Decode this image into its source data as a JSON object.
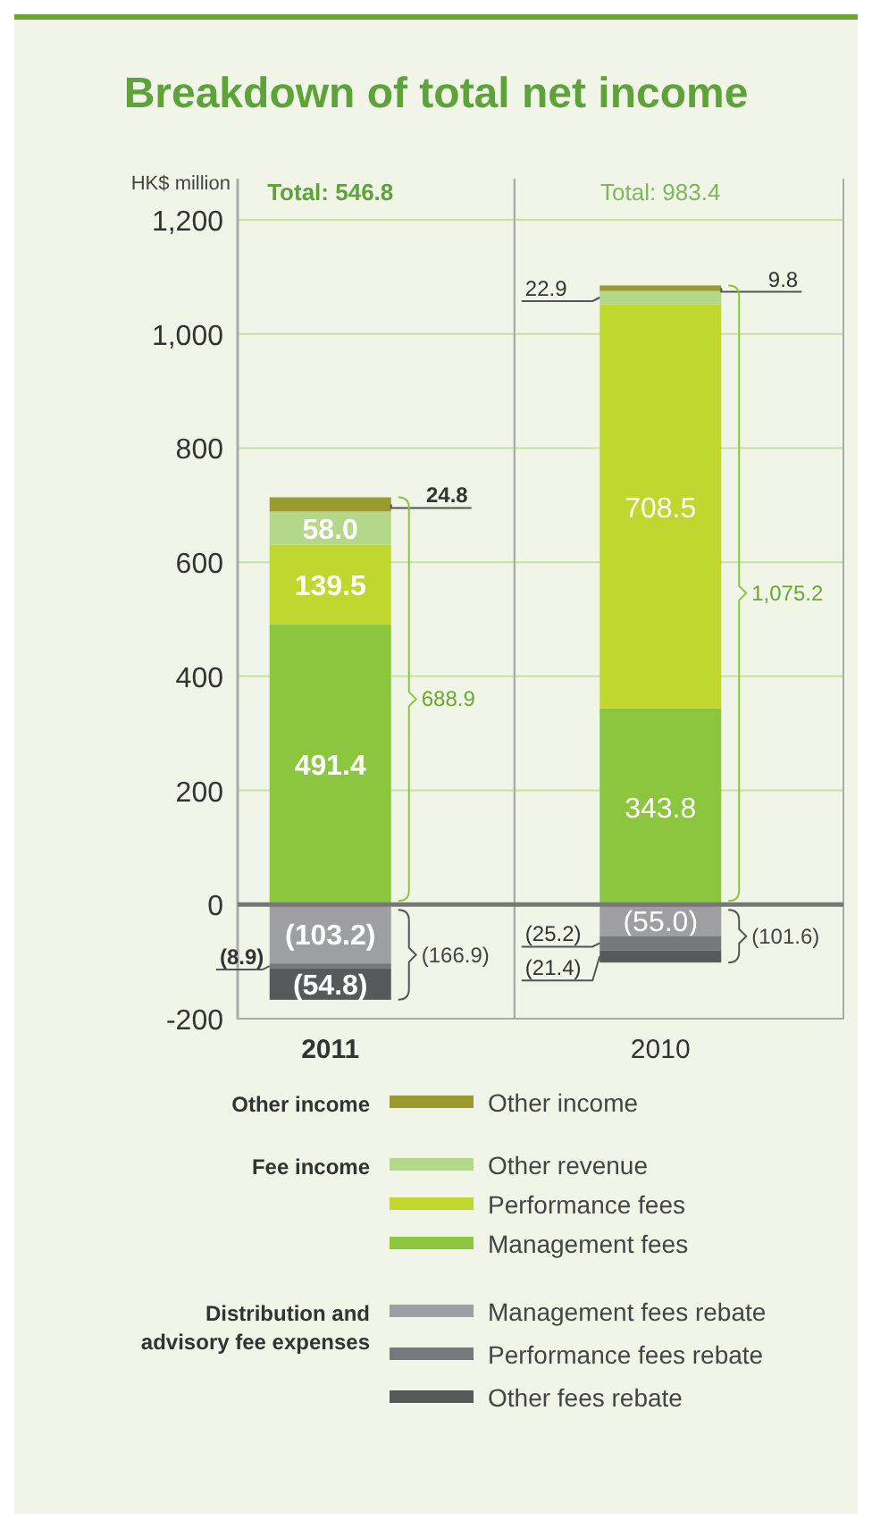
{
  "chart_data": {
    "type": "bar",
    "stacked": true,
    "title": "Breakdown of total net income",
    "ylabel": "HK$ million",
    "categories": [
      "2011",
      "2010"
    ],
    "series": [
      {
        "name": "Management fees",
        "color": "#8cc63f",
        "values": [
          491.4,
          343.8
        ],
        "value_labels": [
          "491.4",
          "343.8"
        ]
      },
      {
        "name": "Performance fees",
        "color": "#c0d72f",
        "values": [
          139.5,
          708.5
        ],
        "value_labels": [
          "139.5",
          "708.5"
        ]
      },
      {
        "name": "Other revenue",
        "color": "#b3d88a",
        "values": [
          58.0,
          22.9
        ],
        "value_labels": [
          "58.0",
          "22.9"
        ]
      },
      {
        "name": "Other income",
        "color": "#9a9a30",
        "values": [
          24.8,
          9.8
        ],
        "value_labels": [
          "24.8",
          "9.8"
        ]
      },
      {
        "name": "Management fees rebate",
        "color": "#9d9fa2",
        "values": [
          -103.2,
          -55.0
        ],
        "value_labels": [
          "(103.2)",
          "(55.0)"
        ]
      },
      {
        "name": "Performance fees rebate",
        "color": "#77787b",
        "values": [
          -8.9,
          -25.2
        ],
        "value_labels": [
          "(8.9)",
          "(25.2)"
        ]
      },
      {
        "name": "Other fees rebate",
        "color": "#58595b",
        "values": [
          -54.8,
          -21.4
        ],
        "value_labels": [
          "(54.8)",
          "(21.4)"
        ]
      }
    ],
    "annotations": [
      "Total: 546.8",
      "Total: 983.4",
      "688.9",
      "1,075.2",
      "(166.9)",
      "(101.6)",
      "Other income",
      "Fee income",
      "Distribution and advisory fee expenses"
    ],
    "ylim": [
      -200,
      1200
    ],
    "yticks": [
      -200,
      0,
      200,
      400,
      600,
      800,
      {
        "value": 1000,
        "label": "1,000"
      },
      {
        "value": 1200,
        "label": "1,200"
      }
    ],
    "grid": "y",
    "legend": "bottom"
  }
}
